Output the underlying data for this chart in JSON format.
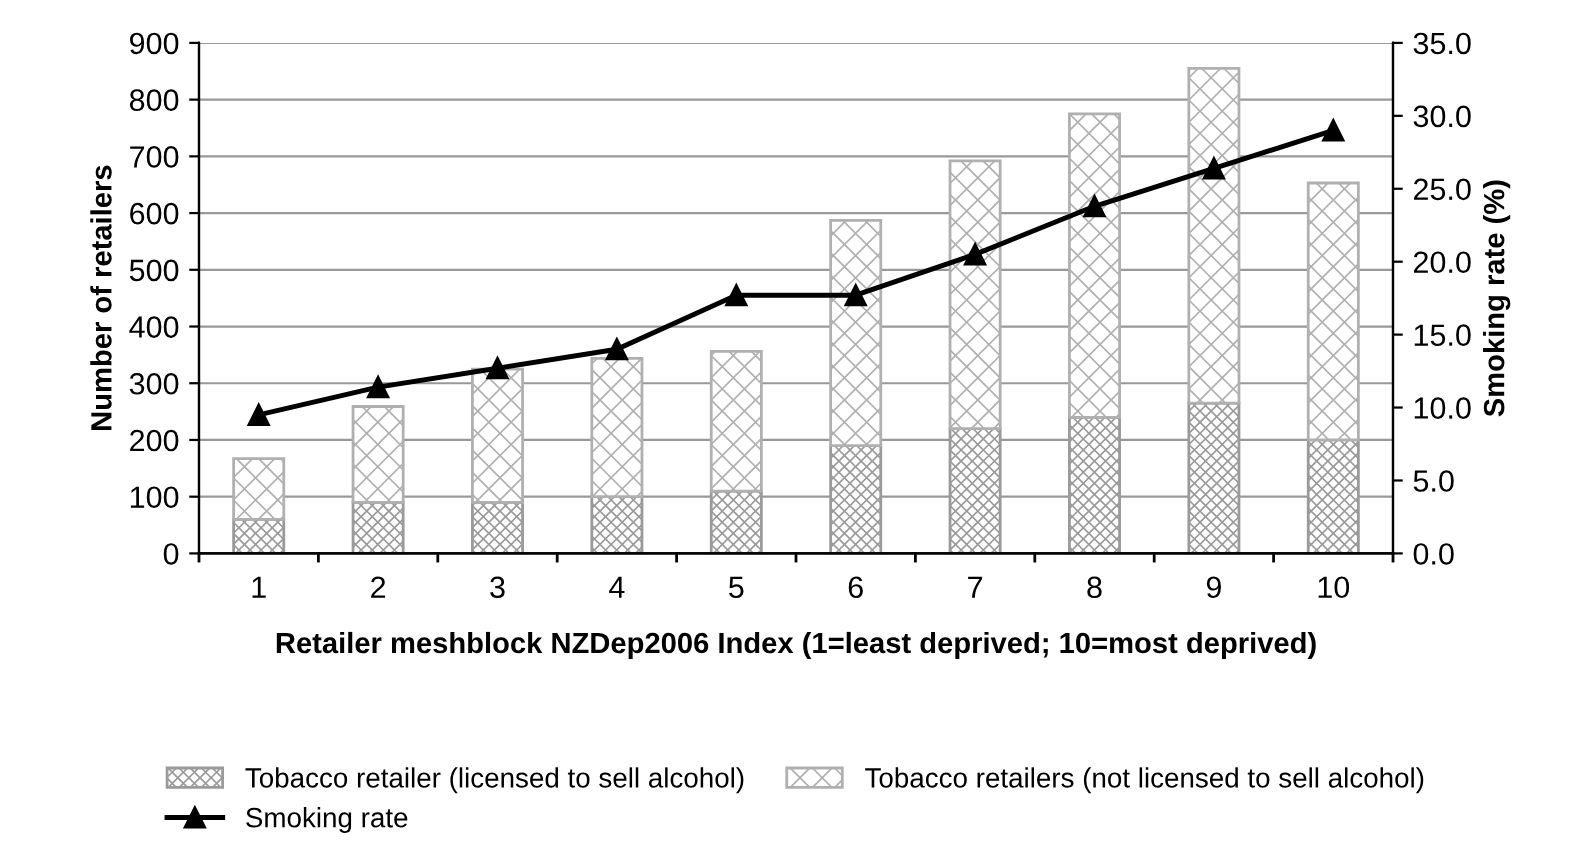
{
  "chart_data": {
    "type": "bar",
    "stacked": true,
    "categories": [
      "1",
      "2",
      "3",
      "4",
      "5",
      "6",
      "7",
      "8",
      "9",
      "10"
    ],
    "xlabel": "Retailer meshblock NZDep2006 Index (1=least deprived; 10=most deprived)",
    "ylabel": "Number of retailers",
    "y2label": "Smoking rate (%)",
    "ylim": [
      0,
      900
    ],
    "yticks": [
      0,
      100,
      200,
      300,
      400,
      500,
      600,
      700,
      800,
      900
    ],
    "y2lim": [
      0,
      35
    ],
    "y2ticks": [
      {
        "value": 0,
        "label": "0.0"
      },
      {
        "value": 5,
        "label": "5.0"
      },
      {
        "value": 10,
        "label": "10.0"
      },
      {
        "value": 15,
        "label": "15.0"
      },
      {
        "value": 20,
        "label": "20.0"
      },
      {
        "value": 25,
        "label": "25.0"
      },
      {
        "value": 30,
        "label": "30.0"
      },
      {
        "value": 35,
        "label": "35.0"
      }
    ],
    "grid": "y",
    "legend": "bottom",
    "series": [
      {
        "name": "Tobacco retailer (licensed to sell alcohol)",
        "color": "#9a9a9a",
        "values": [
          60,
          90,
          90,
          100,
          110,
          190,
          220,
          240,
          265,
          200
        ]
      },
      {
        "name": "Tobacco retailers (not licensed to sell alcohol)",
        "color": "#b0b0b0",
        "values": [
          107,
          169,
          235,
          244,
          246,
          397,
          472,
          535,
          590,
          453
        ]
      },
      {
        "name": "Smoking rate",
        "type": "line",
        "axis": "y2",
        "color": "#000000",
        "marker": "triangle",
        "line_style": "solid",
        "values": [
          9.5,
          11.4,
          12.7,
          14.0,
          17.7,
          17.7,
          20.5,
          23.8,
          26.4,
          29.0
        ]
      }
    ]
  }
}
